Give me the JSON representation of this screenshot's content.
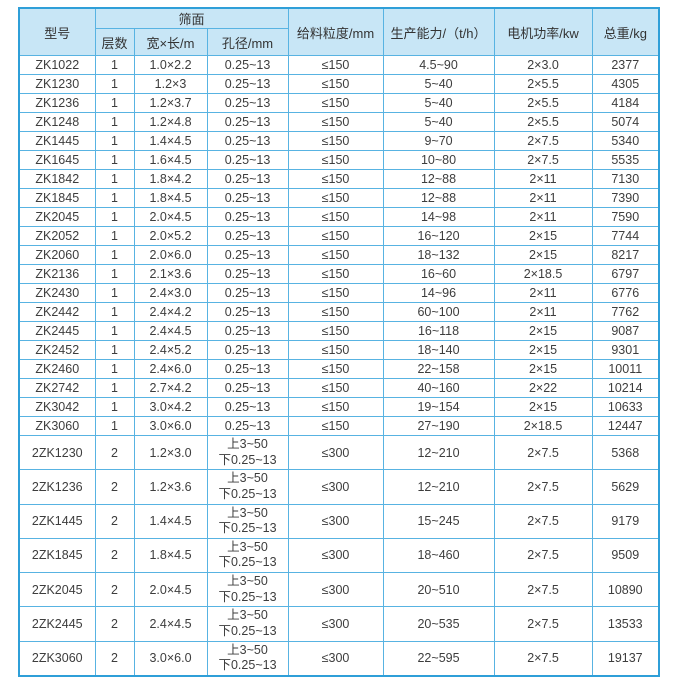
{
  "colors": {
    "border_outer": "#2f9fd8",
    "border_inner": "#58b3e2",
    "header_bg": "#c8e6f6",
    "row_bg": "#ffffff",
    "text": "#3d3d3d"
  },
  "table": {
    "headers": {
      "model": "型号",
      "screen_surface": "筛面",
      "layers": "层数",
      "width_length": "宽×长/m",
      "aperture": "孔径/mm",
      "feed_size": "给料粒度/mm",
      "capacity": "生产能力/（t/h）",
      "motor_power": "电机功率/kw",
      "total_weight": "总重/kg"
    },
    "rows": [
      [
        "ZK1022",
        "1",
        "1.0×2.2",
        "0.25~13",
        "≤150",
        "4.5~90",
        "2×3.0",
        "2377"
      ],
      [
        "ZK1230",
        "1",
        "1.2×3",
        "0.25~13",
        "≤150",
        "5~40",
        "2×5.5",
        "4305"
      ],
      [
        "ZK1236",
        "1",
        "1.2×3.7",
        "0.25~13",
        "≤150",
        "5~40",
        "2×5.5",
        "4184"
      ],
      [
        "ZK1248",
        "1",
        "1.2×4.8",
        "0.25~13",
        "≤150",
        "5~40",
        "2×5.5",
        "5074"
      ],
      [
        "ZK1445",
        "1",
        "1.4×4.5",
        "0.25~13",
        "≤150",
        "9~70",
        "2×7.5",
        "5340"
      ],
      [
        "ZK1645",
        "1",
        "1.6×4.5",
        "0.25~13",
        "≤150",
        "10~80",
        "2×7.5",
        "5535"
      ],
      [
        "ZK1842",
        "1",
        "1.8×4.2",
        "0.25~13",
        "≤150",
        "12~88",
        "2×11",
        "7130"
      ],
      [
        "ZK1845",
        "1",
        "1.8×4.5",
        "0.25~13",
        "≤150",
        "12~88",
        "2×11",
        "7390"
      ],
      [
        "ZK2045",
        "1",
        "2.0×4.5",
        "0.25~13",
        "≤150",
        "14~98",
        "2×11",
        "7590"
      ],
      [
        "ZK2052",
        "1",
        "2.0×5.2",
        "0.25~13",
        "≤150",
        "16~120",
        "2×15",
        "7744"
      ],
      [
        "ZK2060",
        "1",
        "2.0×6.0",
        "0.25~13",
        "≤150",
        "18~132",
        "2×15",
        "8217"
      ],
      [
        "ZK2136",
        "1",
        "2.1×3.6",
        "0.25~13",
        "≤150",
        "16~60",
        "2×18.5",
        "6797"
      ],
      [
        "ZK2430",
        "1",
        "2.4×3.0",
        "0.25~13",
        "≤150",
        "14~96",
        "2×11",
        "6776"
      ],
      [
        "ZK2442",
        "1",
        "2.4×4.2",
        "0.25~13",
        "≤150",
        "60~100",
        "2×11",
        "7762"
      ],
      [
        "ZK2445",
        "1",
        "2.4×4.5",
        "0.25~13",
        "≤150",
        "16~118",
        "2×15",
        "9087"
      ],
      [
        "ZK2452",
        "1",
        "2.4×5.2",
        "0.25~13",
        "≤150",
        "18~140",
        "2×15",
        "9301"
      ],
      [
        "ZK2460",
        "1",
        "2.4×6.0",
        "0.25~13",
        "≤150",
        "22~158",
        "2×15",
        "10011"
      ],
      [
        "ZK2742",
        "1",
        "2.7×4.2",
        "0.25~13",
        "≤150",
        "40~160",
        "2×22",
        "10214"
      ],
      [
        "ZK3042",
        "1",
        "3.0×4.2",
        "0.25~13",
        "≤150",
        "19~154",
        "2×15",
        "10633"
      ],
      [
        "ZK3060",
        "1",
        "3.0×6.0",
        "0.25~13",
        "≤150",
        "27~190",
        "2×18.5",
        "12447"
      ],
      [
        "2ZK1230",
        "2",
        "1.2×3.0",
        "上3~50\n下0.25~13",
        "≤300",
        "12~210",
        "2×7.5",
        "5368"
      ],
      [
        "2ZK1236",
        "2",
        "1.2×3.6",
        "上3~50\n下0.25~13",
        "≤300",
        "12~210",
        "2×7.5",
        "5629"
      ],
      [
        "2ZK1445",
        "2",
        "1.4×4.5",
        "上3~50\n下0.25~13",
        "≤300",
        "15~245",
        "2×7.5",
        "9179"
      ],
      [
        "2ZK1845",
        "2",
        "1.8×4.5",
        "上3~50\n下0.25~13",
        "≤300",
        "18~460",
        "2×7.5",
        "9509"
      ],
      [
        "2ZK2045",
        "2",
        "2.0×4.5",
        "上3~50\n下0.25~13",
        "≤300",
        "20~510",
        "2×7.5",
        "10890"
      ],
      [
        "2ZK2445",
        "2",
        "2.4×4.5",
        "上3~50\n下0.25~13",
        "≤300",
        "20~535",
        "2×7.5",
        "13533"
      ],
      [
        "2ZK3060",
        "2",
        "3.0×6.0",
        "上3~50\n下0.25~13",
        "≤300",
        "22~595",
        "2×7.5",
        "19137"
      ]
    ]
  }
}
